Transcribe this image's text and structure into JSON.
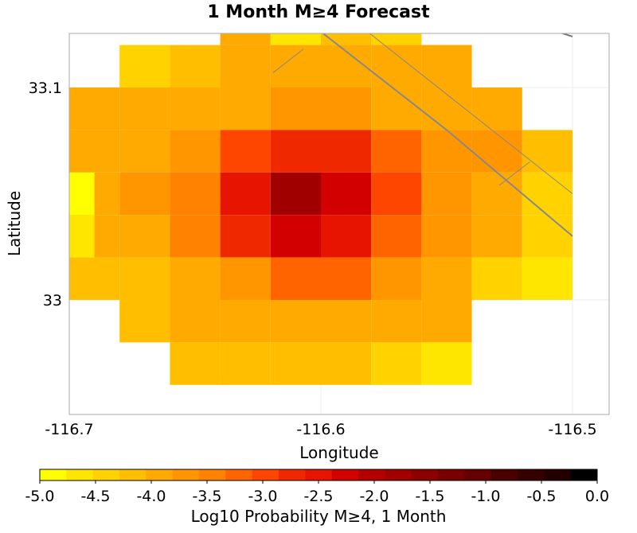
{
  "chart_data": {
    "type": "heatmap",
    "title": "1 Month M≥4 Forecast",
    "xlabel": "Longitude",
    "ylabel": "Latitude",
    "x_ticks": [
      {
        "value": -116.7,
        "label": "-116.7"
      },
      {
        "value": -116.6,
        "label": "-116.6"
      },
      {
        "value": -116.5,
        "label": "-116.5"
      }
    ],
    "y_ticks": [
      {
        "value": 33.1,
        "label": "33.1"
      },
      {
        "value": 33.0,
        "label": "33"
      }
    ],
    "xlim": [
      -116.7,
      -116.5
    ],
    "ylim": [
      32.95,
      33.13
    ],
    "grid": true,
    "cell_size_deg": 0.02,
    "columns_lon": [
      -116.69,
      -116.67,
      -116.65,
      -116.63,
      -116.61,
      -116.59,
      -116.57,
      -116.55,
      -116.53,
      -116.51
    ],
    "rows_lat": [
      33.13,
      33.11,
      33.09,
      33.07,
      33.05,
      33.03,
      33.01,
      32.99,
      32.97
    ],
    "grid_values": [
      [
        null,
        null,
        null,
        -4.0,
        -4.7,
        -4.2,
        -4.3,
        null,
        null,
        null
      ],
      [
        null,
        -4.3,
        -4.1,
        -4.0,
        -3.9,
        -3.9,
        -4.0,
        -4.0,
        null,
        null
      ],
      [
        -4.0,
        -4.0,
        -4.0,
        -4.0,
        -3.6,
        -3.6,
        -3.9,
        -4.0,
        -4.0,
        null
      ],
      [
        -4.0,
        -3.9,
        -3.6,
        -3.0,
        -2.7,
        -2.7,
        -3.3,
        -3.6,
        -3.8,
        -4.2
      ],
      [
        -4.0,
        -3.8,
        -3.4,
        -2.5,
        -1.9,
        -2.3,
        -2.9,
        -3.8,
        -4.0,
        -4.4
      ],
      [
        -4.0,
        -3.9,
        -3.4,
        -2.7,
        -2.2,
        -2.5,
        -3.3,
        -3.6,
        -4.0,
        -4.5
      ],
      [
        -4.1,
        -4.1,
        -3.9,
        -3.6,
        -3.3,
        -3.3,
        -3.6,
        -4.0,
        -4.3,
        -4.6
      ],
      [
        null,
        -4.1,
        -4.0,
        -3.9,
        -3.9,
        -3.9,
        -3.9,
        -4.0,
        null,
        null
      ],
      [
        null,
        null,
        -4.2,
        -4.2,
        -4.2,
        -4.2,
        -4.4,
        -4.7,
        null,
        null
      ]
    ],
    "partial_left_column": {
      "lon_min": -116.7,
      "lon_max": -116.69,
      "values_by_lat": [
        {
          "lat": 33.05,
          "value": -4.9
        },
        {
          "lat": 33.03,
          "value": -4.6
        }
      ]
    },
    "fault_lines": [
      {
        "points": [
          [
            -116.631,
            33.155
          ],
          [
            -116.55,
            33.08
          ],
          [
            -116.5,
            33.03
          ]
        ],
        "color": "#888888",
        "width": 2
      },
      {
        "points": [
          [
            -116.61,
            33.153
          ],
          [
            -116.5,
            33.05
          ]
        ],
        "color": "#888888",
        "width": 1
      },
      {
        "points": [
          [
            -116.619,
            33.107
          ],
          [
            -116.607,
            33.118
          ]
        ],
        "color": "#888888",
        "width": 1
      },
      {
        "points": [
          [
            -116.529,
            33.054
          ],
          [
            -116.517,
            33.065
          ]
        ],
        "color": "#888888",
        "width": 1
      },
      {
        "points": [
          [
            -116.537,
            33.153
          ],
          [
            -116.518,
            33.134
          ],
          [
            -116.508,
            33.127
          ],
          [
            -116.5,
            33.124
          ]
        ],
        "color": "#777777",
        "width": 2
      }
    ],
    "colorbar": {
      "label": "Log10 Probability M≥4, 1 Month",
      "min": -5.0,
      "max": 0.0,
      "ticks": [
        "-5.0",
        "-4.5",
        "-4.0",
        "-3.5",
        "-3.0",
        "-2.5",
        "-2.0",
        "-1.5",
        "-1.0",
        "-0.5",
        "0.0"
      ],
      "colors": [
        "#ffff00",
        "#ffe600",
        "#ffd200",
        "#ffbe00",
        "#ffaa00",
        "#ff9600",
        "#ff8200",
        "#ff6400",
        "#ff4600",
        "#f02800",
        "#e61400",
        "#d20000",
        "#b40000",
        "#a00000",
        "#8c0000",
        "#780000",
        "#640000",
        "#4b0000",
        "#370000",
        "#230000",
        "#000000"
      ]
    }
  }
}
